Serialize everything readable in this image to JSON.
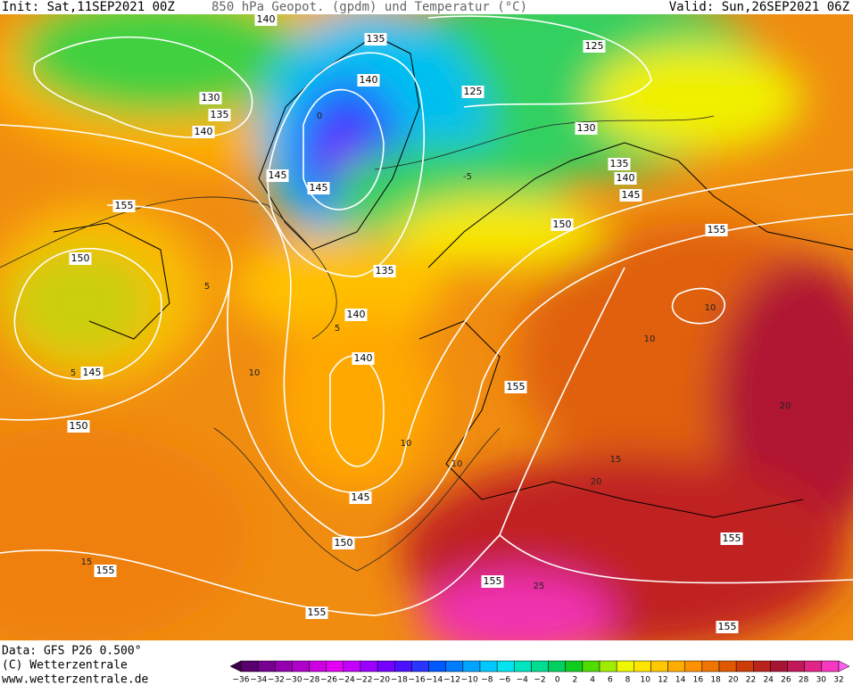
{
  "header": {
    "init": "Init: Sat,11SEP2021 00Z",
    "title": "850 hPa Geopot. (gpdm) und Temperatur (°C)",
    "valid": "Valid: Sun,26SEP2021 06Z"
  },
  "footer": {
    "source": "Data: GFS P26 0.500°",
    "copyright": "(C) Wetterzentrale",
    "url": "www.wetterzentrale.de"
  },
  "geopotential_labels": [
    "140",
    "135",
    "140",
    "130",
    "135",
    "140",
    "145",
    "145",
    "135",
    "125",
    "125",
    "130",
    "135",
    "140",
    "145",
    "150",
    "155",
    "155",
    "150",
    "145",
    "140",
    "140",
    "145",
    "150",
    "150",
    "155",
    "155",
    "155",
    "155",
    "155",
    "155"
  ],
  "temperature_labels": [
    "10",
    "5",
    "0",
    "-5",
    "10",
    "5",
    "10",
    "10",
    "15",
    "20",
    "25",
    "15",
    "20",
    "10",
    "5"
  ],
  "colorbar": {
    "labels": [
      "−36",
      "−34",
      "−32",
      "−30",
      "−28",
      "−26",
      "−24",
      "−22",
      "−20",
      "−18",
      "−16",
      "−14",
      "−12",
      "−10",
      "−8",
      "−6",
      "−4",
      "−2",
      "0",
      "2",
      "4",
      "6",
      "8",
      "10",
      "12",
      "14",
      "16",
      "18",
      "20",
      "22",
      "24",
      "26",
      "28",
      "30",
      "32"
    ],
    "colors": [
      "#3c0046",
      "#58006e",
      "#760090",
      "#9400b0",
      "#b000cc",
      "#cc00e0",
      "#e400f4",
      "#c400ff",
      "#9c00ff",
      "#7400ff",
      "#4c10ff",
      "#2834ff",
      "#0058ff",
      "#007cff",
      "#00a4ff",
      "#00c8ff",
      "#00e4f0",
      "#00e4c0",
      "#00dc90",
      "#00d060",
      "#10cc20",
      "#50dc00",
      "#a0ec00",
      "#f0f800",
      "#ffe400",
      "#ffc800",
      "#ffac00",
      "#ff9000",
      "#f07400",
      "#e05800",
      "#cc3c08",
      "#b8241c",
      "#a81434",
      "#c01858",
      "#e02488",
      "#f838c0",
      "#ff60f0"
    ]
  }
}
